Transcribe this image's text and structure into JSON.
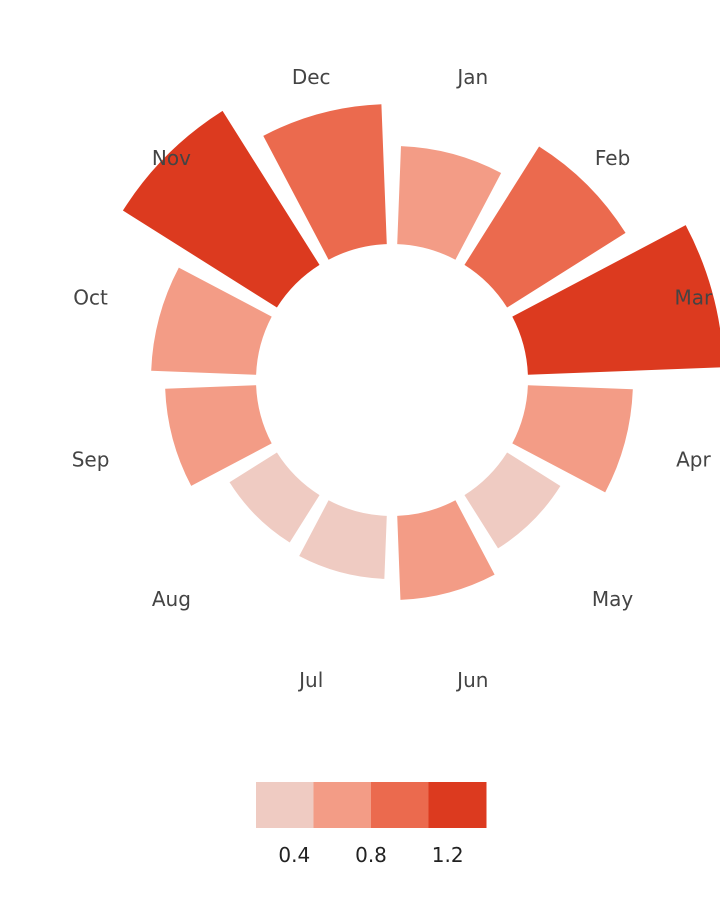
{
  "chart_data": {
    "type": "radial-bar",
    "title": "",
    "categories": [
      "Jan",
      "Feb",
      "Mar",
      "Apr",
      "May",
      "Jun",
      "Jul",
      "Aug",
      "Sep",
      "Oct",
      "Nov",
      "Dec"
    ],
    "values": [
      0.7,
      1.0,
      1.4,
      0.75,
      0.45,
      0.6,
      0.45,
      0.4,
      0.65,
      0.75,
      1.3,
      1.0
    ],
    "category_colors": [
      "#f39c86",
      "#eb6a4e",
      "#dc3a1f",
      "#f39c86",
      "#efcbc2",
      "#f39c86",
      "#efcbc2",
      "#efcbc2",
      "#f39c86",
      "#f39c86",
      "#dc3a1f",
      "#eb6a4e"
    ],
    "colorbar": {
      "colors": [
        "#efcbc2",
        "#f39c86",
        "#eb6a4e",
        "#dc3a1f"
      ],
      "tick_values": [
        0.4,
        0.8,
        1.2
      ],
      "tick_labels": [
        "0.4",
        "0.8",
        "1.2"
      ],
      "range": [
        0.2,
        1.4
      ],
      "orientation": "horizontal"
    }
  }
}
